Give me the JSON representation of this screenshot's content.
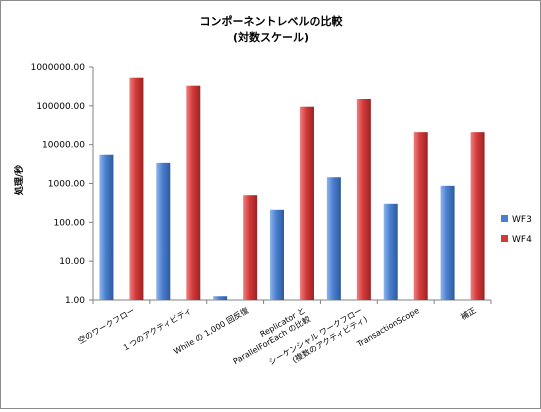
{
  "chart_data": {
    "type": "bar",
    "title": "コンポーネントレベルの比較",
    "subtitle": "(対数スケール)",
    "ylabel": "処理/秒",
    "xlabel": "",
    "yscale": "log",
    "ylim": [
      1,
      1000000
    ],
    "yticks": [
      "1.00",
      "10.00",
      "100.00",
      "1000.00",
      "10000.00",
      "100000.00",
      "1000000.00"
    ],
    "grid": false,
    "legend": "right",
    "categories": [
      [
        "空のワークフロー"
      ],
      [
        "１つのアクティビティ"
      ],
      [
        "While の 1,000 回反復"
      ],
      [
        "Replicator と",
        "ParallelForEach の比較"
      ],
      [
        "シーケンシャル ワークフロー",
        "(複数のアクティビティ)"
      ],
      [
        "TransactionScope"
      ],
      [
        "補正"
      ]
    ],
    "series": [
      {
        "name": "WF3",
        "color": "#4a7fcf",
        "values": [
          5500,
          3400,
          1.25,
          210,
          1450,
          300,
          870
        ]
      },
      {
        "name": "WF4",
        "color": "#d23a3a",
        "values": [
          530000,
          330000,
          500,
          95000,
          150000,
          21000,
          21000
        ]
      }
    ]
  }
}
